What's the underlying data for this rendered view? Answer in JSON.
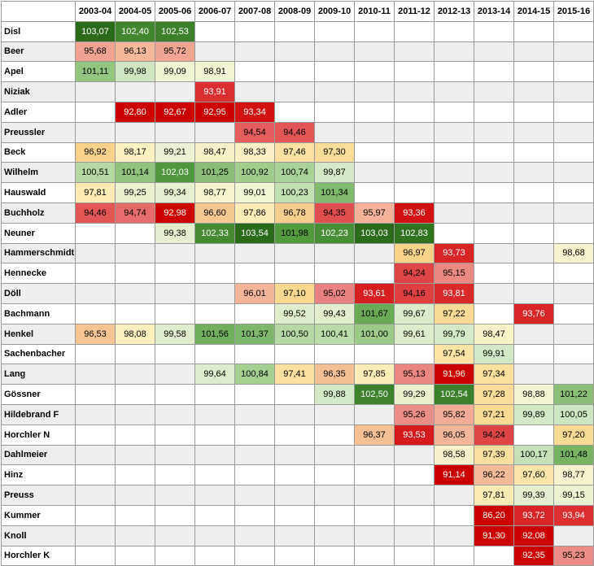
{
  "chart_data": {
    "type": "heatmap",
    "title": "",
    "xlabel": "",
    "ylabel": "",
    "seasons": [
      "2003-04",
      "2004-05",
      "2005-06",
      "2006-07",
      "2007-08",
      "2008-09",
      "2009-10",
      "2010-11",
      "2011-12",
      "2012-13",
      "2013-14",
      "2014-15",
      "2015-16"
    ],
    "rows": [
      {
        "name": "Disl",
        "values": [
          "103,07",
          "102,40",
          "102,53",
          "",
          "",
          "",
          "",
          "",
          "",
          "",
          "",
          "",
          ""
        ]
      },
      {
        "name": "Beer",
        "values": [
          "95,68",
          "96,13",
          "95,72",
          "",
          "",
          "",
          "",
          "",
          "",
          "",
          "",
          "",
          ""
        ]
      },
      {
        "name": "Apel",
        "values": [
          "101,11",
          "99,98",
          "99,09",
          "98,91",
          "",
          "",
          "",
          "",
          "",
          "",
          "",
          "",
          ""
        ]
      },
      {
        "name": "Niziak",
        "values": [
          "",
          "",
          "",
          "93,91",
          "",
          "",
          "",
          "",
          "",
          "",
          "",
          "",
          ""
        ]
      },
      {
        "name": "Adler",
        "values": [
          "",
          "92,80",
          "92,67",
          "92,95",
          "93,34",
          "",
          "",
          "",
          "",
          "",
          "",
          "",
          ""
        ]
      },
      {
        "name": "Preussler",
        "values": [
          "",
          "",
          "",
          "",
          "94,54",
          "94,46",
          "",
          "",
          "",
          "",
          "",
          "",
          ""
        ]
      },
      {
        "name": "Beck",
        "values": [
          "96,92",
          "98,17",
          "99,21",
          "98,47",
          "98,33",
          "97,46",
          "97,30",
          "",
          "",
          "",
          "",
          "",
          ""
        ]
      },
      {
        "name": "Wilhelm",
        "values": [
          "100,51",
          "101,14",
          "102,03",
          "101,25",
          "100,92",
          "100,74",
          "99,87",
          "",
          "",
          "",
          "",
          "",
          ""
        ]
      },
      {
        "name": "Hauswald",
        "values": [
          "97,81",
          "99,25",
          "99,34",
          "98,77",
          "99,01",
          "100,23",
          "101,34",
          "",
          "",
          "",
          "",
          "",
          ""
        ]
      },
      {
        "name": "Buchholz",
        "values": [
          "94,46",
          "94,74",
          "92,98",
          "96,60",
          "97,86",
          "96,78",
          "94,35",
          "95,97",
          "93,36",
          "",
          "",
          "",
          ""
        ]
      },
      {
        "name": "Neuner",
        "values": [
          "",
          "",
          "99,38",
          "102,33",
          "103,54",
          "101,98",
          "102,23",
          "103,03",
          "102,83",
          "",
          "",
          "",
          ""
        ]
      },
      {
        "name": "Hammerschmidt",
        "values": [
          "",
          "",
          "",
          "",
          "",
          "",
          "",
          "",
          "96,97",
          "93,73",
          "",
          "",
          "98,68"
        ]
      },
      {
        "name": "Hennecke",
        "values": [
          "",
          "",
          "",
          "",
          "",
          "",
          "",
          "",
          "94,24",
          "95,15",
          "",
          "",
          ""
        ]
      },
      {
        "name": "Döll",
        "values": [
          "",
          "",
          "",
          "",
          "96,01",
          "97,10",
          "95,02",
          "93,61",
          "94,16",
          "93,81",
          "",
          "",
          ""
        ]
      },
      {
        "name": "Bachmann",
        "values": [
          "",
          "",
          "",
          "",
          "",
          "99,52",
          "99,43",
          "101,67",
          "99,67",
          "97,22",
          "",
          "93,76",
          ""
        ]
      },
      {
        "name": "Henkel",
        "values": [
          "96,53",
          "98,08",
          "99,58",
          "101,56",
          "101,37",
          "100,50",
          "100,41",
          "101,00",
          "99,61",
          "99,79",
          "98,47",
          "",
          ""
        ]
      },
      {
        "name": "Sachenbacher",
        "values": [
          "",
          "",
          "",
          "",
          "",
          "",
          "",
          "",
          "",
          "97,54",
          "99,91",
          "",
          ""
        ]
      },
      {
        "name": "Lang",
        "values": [
          "",
          "",
          "",
          "99,64",
          "100,84",
          "97,41",
          "96,35",
          "97,85",
          "95,13",
          "91,96",
          "97,34",
          "",
          ""
        ]
      },
      {
        "name": "Gössner",
        "values": [
          "",
          "",
          "",
          "",
          "",
          "",
          "99,88",
          "102,50",
          "99,29",
          "102,54",
          "97,28",
          "98,88",
          "101,22"
        ]
      },
      {
        "name": "Hildebrand F",
        "values": [
          "",
          "",
          "",
          "",
          "",
          "",
          "",
          "",
          "95,26",
          "95,82",
          "97,21",
          "99,89",
          "100,05"
        ]
      },
      {
        "name": "Horchler N",
        "values": [
          "",
          "",
          "",
          "",
          "",
          "",
          "",
          "96,37",
          "93,53",
          "96,05",
          "94,24",
          "",
          "97,20"
        ]
      },
      {
        "name": "Dahlmeier",
        "values": [
          "",
          "",
          "",
          "",
          "",
          "",
          "",
          "",
          "",
          "98,58",
          "97,39",
          "100,17",
          "101,48"
        ]
      },
      {
        "name": "Hinz",
        "values": [
          "",
          "",
          "",
          "",
          "",
          "",
          "",
          "",
          "",
          "91,14",
          "96,22",
          "97,60",
          "98,77"
        ]
      },
      {
        "name": "Preuss",
        "values": [
          "",
          "",
          "",
          "",
          "",
          "",
          "",
          "",
          "",
          "",
          "97,81",
          "99,39",
          "99,15"
        ]
      },
      {
        "name": "Kummer",
        "values": [
          "",
          "",
          "",
          "",
          "",
          "",
          "",
          "",
          "",
          "",
          "86,20",
          "93,72",
          "93,94"
        ]
      },
      {
        "name": "Knoll",
        "values": [
          "",
          "",
          "",
          "",
          "",
          "",
          "",
          "",
          "",
          "",
          "91,30",
          "92,08",
          ""
        ]
      },
      {
        "name": "Horchler K",
        "values": [
          "",
          "",
          "",
          "",
          "",
          "",
          "",
          "",
          "",
          "",
          "",
          "92,35",
          "95,23"
        ]
      }
    ],
    "color_scale": {
      "stops": [
        {
          "value": 93.0,
          "color": "#cc0000"
        },
        {
          "value": 94.0,
          "color": "#dd3333"
        },
        {
          "value": 95.0,
          "color": "#e88080"
        },
        {
          "value": 96.0,
          "color": "#f4b49a"
        },
        {
          "value": 97.0,
          "color": "#f8d48a"
        },
        {
          "value": 98.0,
          "color": "#fdf0bd"
        },
        {
          "value": 99.0,
          "color": "#f2f4d6"
        },
        {
          "value": 100.0,
          "color": "#cfe6c3"
        },
        {
          "value": 101.0,
          "color": "#9dca86"
        },
        {
          "value": 102.0,
          "color": "#4f9a3c"
        },
        {
          "value": 103.0,
          "color": "#2a6b19"
        }
      ],
      "empty_row_colors": [
        "#ffffff",
        "#eeeeee"
      ],
      "header_bg": "#ffffff",
      "text_color": "#000000",
      "text_color_dark": "#ffffff"
    }
  }
}
